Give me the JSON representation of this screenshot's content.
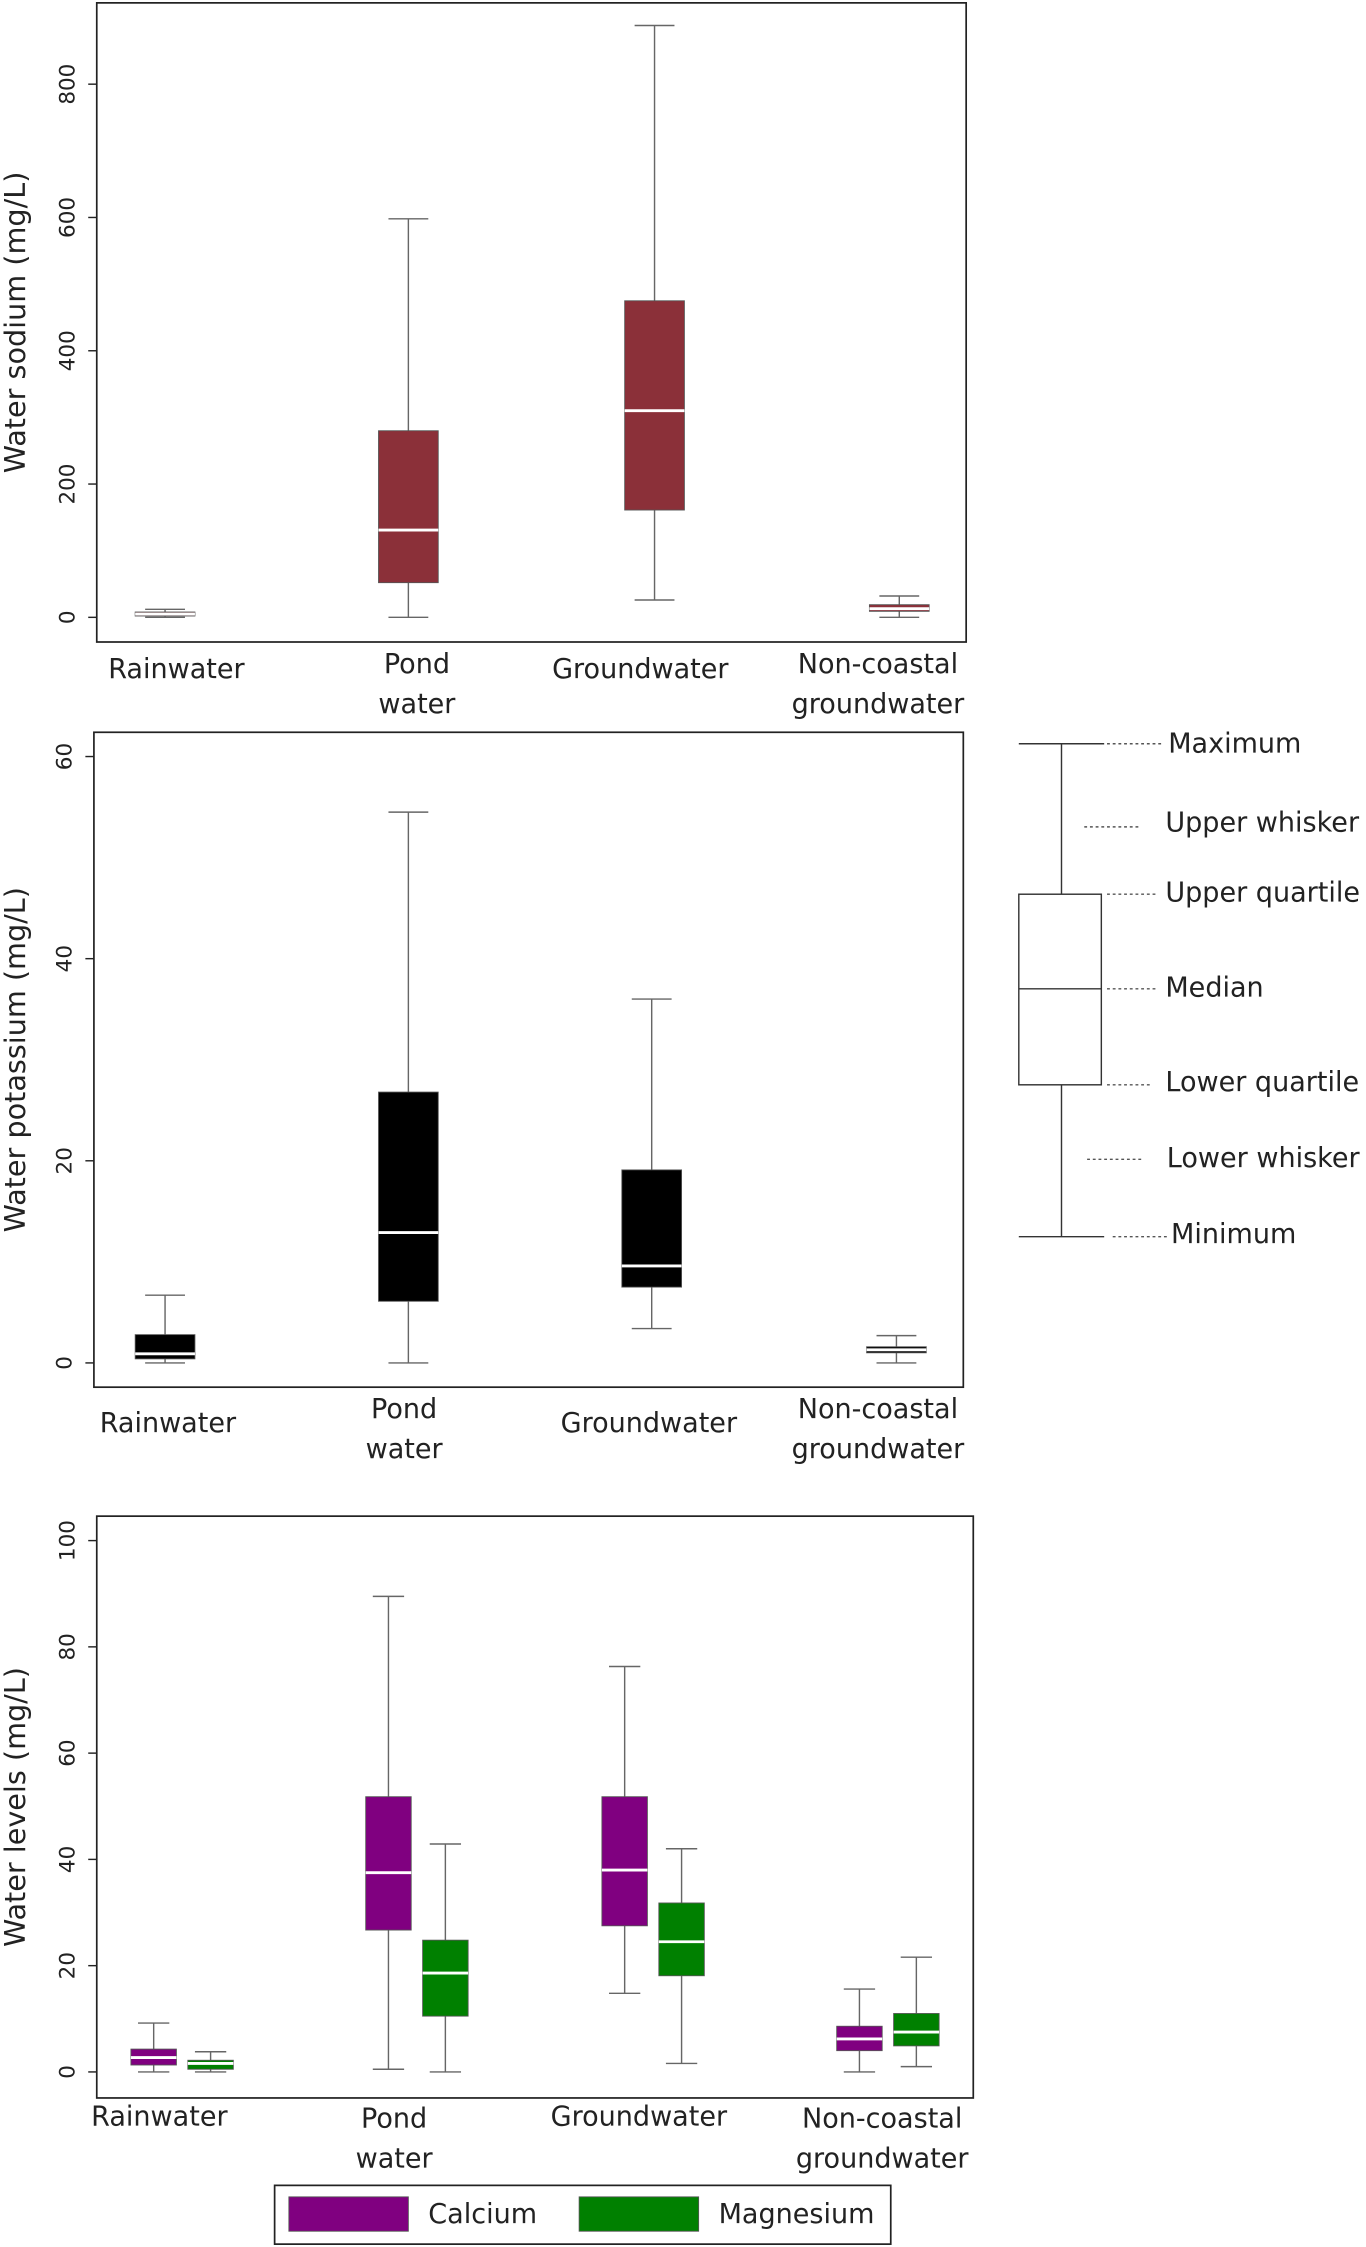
{
  "chart_data": [
    {
      "type": "box",
      "y_label": "Water sodium (mg/L)",
      "categories": [
        "Rainwater",
        "Pond water",
        "Groundwater",
        "Non-coastal groundwater"
      ],
      "ylim": [
        -37,
        922
      ],
      "yticks": [
        0,
        200,
        400,
        600,
        800
      ],
      "series": [
        {
          "color": "#8b3039",
          "median_color": "#ffffff",
          "min": [
            0,
            0,
            26,
            0
          ],
          "q1": [
            2,
            52,
            161,
            9
          ],
          "median": [
            5,
            131,
            310,
            13
          ],
          "q3": [
            8,
            280,
            475,
            19
          ],
          "max": [
            12,
            598,
            888,
            32
          ]
        }
      ]
    },
    {
      "type": "box",
      "y_label": "Water potassium (mg/L)",
      "categories": [
        "Rainwater",
        "Pond water",
        "Groundwater",
        "Non-coastal groundwater"
      ],
      "ylim": [
        -2.4,
        62.4
      ],
      "yticks": [
        0,
        20,
        40,
        60
      ],
      "series": [
        {
          "color": "#000000",
          "median_color": "#ffffff",
          "min": [
            0,
            0,
            3.4,
            0
          ],
          "q1": [
            0.4,
            6.1,
            7.5,
            1.0
          ],
          "median": [
            0.9,
            12.9,
            9.6,
            1.3
          ],
          "q3": [
            2.8,
            26.8,
            19.1,
            1.6
          ],
          "max": [
            6.7,
            54.5,
            36,
            2.7
          ]
        }
      ]
    },
    {
      "type": "box",
      "y_label": "Water levels (mg/L)",
      "categories": [
        "Rainwater",
        "Pond water",
        "Groundwater",
        "Non-coastal groundwater"
      ],
      "ylim": [
        -4.9,
        104.6
      ],
      "yticks": [
        0,
        20,
        40,
        60,
        80,
        100
      ],
      "series": [
        {
          "name": "Calcium",
          "color": "#800080",
          "median_color": "#ffffff",
          "min": [
            0,
            0.5,
            14.8,
            0
          ],
          "q1": [
            1.3,
            26.7,
            27.5,
            4
          ],
          "median": [
            2.7,
            37.5,
            38,
            6.2
          ],
          "q3": [
            4.3,
            51.8,
            51.8,
            8.6
          ],
          "max": [
            9.2,
            89.5,
            76.3,
            15.6
          ]
        },
        {
          "name": "Magnesium",
          "color": "#008000",
          "median_color": "#ffffff",
          "min": [
            0,
            0,
            1.6,
            1
          ],
          "q1": [
            0.5,
            10.5,
            18.1,
            4.9
          ],
          "median": [
            1.6,
            18.6,
            24.5,
            7.5
          ],
          "q3": [
            2.2,
            24.8,
            31.8,
            11
          ],
          "max": [
            3.8,
            42.9,
            42,
            21.6
          ]
        }
      ]
    }
  ],
  "legend_diagram": {
    "labels": [
      "Maximum",
      "Upper whisker",
      "Upper quartile",
      "Median",
      "Lower quartile",
      "Lower whisker",
      "Minimum"
    ]
  }
}
